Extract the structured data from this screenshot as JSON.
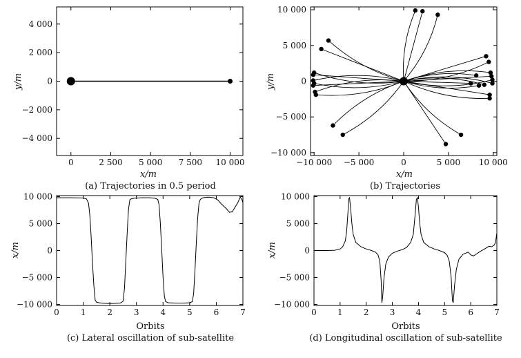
{
  "chart_data": [
    {
      "id": "a",
      "type": "scatter",
      "caption": "(a) Trajectories in 0.5 period",
      "xlabel": "x/m",
      "ylabel": "y/m",
      "xlim": [
        -900,
        10800
      ],
      "ylim": [
        -5200,
        5200
      ],
      "xticks": [
        {
          "v": 0,
          "label": "0"
        },
        {
          "v": 2500,
          "label": "2 500"
        },
        {
          "v": 5000,
          "label": "5 000"
        },
        {
          "v": 7500,
          "label": "7 500"
        },
        {
          "v": 10000,
          "label": "10 000"
        }
      ],
      "yticks": [
        {
          "v": 4000,
          "label": "4 000"
        },
        {
          "v": 2000,
          "label": "2 000"
        },
        {
          "v": 0,
          "label": "0"
        },
        {
          "v": -2000,
          "label": "−2 000"
        },
        {
          "v": -4000,
          "label": "−4 000"
        }
      ],
      "lines": [
        [
          [
            0,
            0
          ],
          [
            10000,
            0
          ]
        ]
      ],
      "markers": [
        {
          "x": 0,
          "y": 0,
          "size": "large"
        },
        {
          "x": 10000,
          "y": 0,
          "size": "small"
        }
      ]
    },
    {
      "id": "b",
      "type": "scatter",
      "caption": "(b) Trajectories",
      "xlabel": "x/m",
      "ylabel": "y/m",
      "xlim": [
        -10400,
        10400
      ],
      "ylim": [
        -10400,
        10400
      ],
      "xticks": [
        {
          "v": -10000,
          "label": "−10 000"
        },
        {
          "v": -5000,
          "label": "−5 000"
        },
        {
          "v": 0,
          "label": "0"
        },
        {
          "v": 5000,
          "label": "5 000"
        },
        {
          "v": 10000,
          "label": "10 000"
        }
      ],
      "yticks": [
        {
          "v": 10000,
          "label": "10 000"
        },
        {
          "v": 5000,
          "label": "5 000"
        },
        {
          "v": 0,
          "label": "0"
        },
        {
          "v": -5000,
          "label": "−5 000"
        },
        {
          "v": -10000,
          "label": "−10 000"
        }
      ],
      "center": {
        "x": 0,
        "y": 0
      },
      "endpoints": [
        [
          1300,
          9900
        ],
        [
          2100,
          9800
        ],
        [
          3800,
          9300
        ],
        [
          -8400,
          5700
        ],
        [
          -9200,
          4500
        ],
        [
          -7900,
          -6200
        ],
        [
          -6800,
          -7500
        ],
        [
          4700,
          -8800
        ],
        [
          6400,
          -7500
        ],
        [
          -10000,
          1200
        ],
        [
          -10100,
          900
        ],
        [
          -10100,
          100
        ],
        [
          -10000,
          -300
        ],
        [
          -10100,
          -600
        ],
        [
          -9900,
          -1500
        ],
        [
          -9800,
          -1900
        ],
        [
          9200,
          3500
        ],
        [
          9500,
          2700
        ],
        [
          9700,
          1200
        ],
        [
          9800,
          700
        ],
        [
          9900,
          200
        ],
        [
          9900,
          -300
        ],
        [
          9600,
          -1900
        ],
        [
          9600,
          -2400
        ],
        [
          8100,
          800
        ],
        [
          7500,
          -300
        ],
        [
          8400,
          -600
        ],
        [
          9000,
          -500
        ]
      ]
    },
    {
      "id": "c",
      "type": "line",
      "caption": "(c) Lateral oscillation of sub-satellite",
      "xlabel": "Orbits",
      "ylabel": "x/m",
      "xlim": [
        0,
        7
      ],
      "ylim": [
        -10200,
        10200
      ],
      "xticks": [
        {
          "v": 0,
          "label": "0"
        },
        {
          "v": 1,
          "label": "1"
        },
        {
          "v": 2,
          "label": "2"
        },
        {
          "v": 3,
          "label": "3"
        },
        {
          "v": 4,
          "label": "4"
        },
        {
          "v": 5,
          "label": "5"
        },
        {
          "v": 6,
          "label": "6"
        },
        {
          "v": 7,
          "label": "7"
        }
      ],
      "yticks": [
        {
          "v": 10000,
          "label": "10 000"
        },
        {
          "v": 5000,
          "label": "5 000"
        },
        {
          "v": 0,
          "label": "0"
        },
        {
          "v": -5000,
          "label": "−5 000"
        },
        {
          "v": -10000,
          "label": "−10 000"
        }
      ],
      "x": [
        0,
        0.5,
        1.0,
        1.12,
        1.2,
        1.25,
        1.3,
        1.35,
        1.4,
        1.45,
        1.5,
        1.6,
        1.8,
        2.0,
        2.2,
        2.4,
        2.5,
        2.55,
        2.6,
        2.65,
        2.7,
        2.75,
        2.8,
        2.9,
        3.2,
        3.5,
        3.7,
        3.8,
        3.85,
        3.9,
        3.95,
        4.0,
        4.05,
        4.1,
        4.2,
        4.5,
        4.8,
        5.0,
        5.1,
        5.15,
        5.2,
        5.25,
        5.3,
        5.35,
        5.4,
        5.5,
        5.7,
        5.9,
        6.05,
        6.2,
        6.35,
        6.5,
        6.6,
        6.7,
        6.8,
        6.9,
        6.97,
        7.0
      ],
      "y": [
        9800,
        9800,
        9750,
        9600,
        8800,
        6500,
        2500,
        -2500,
        -6500,
        -9200,
        -9600,
        -9700,
        -9800,
        -9850,
        -9800,
        -9750,
        -9400,
        -7000,
        -2000,
        3000,
        7500,
        9400,
        9600,
        9700,
        9800,
        9800,
        9700,
        9500,
        8500,
        5000,
        0,
        -5000,
        -8500,
        -9500,
        -9700,
        -9750,
        -9750,
        -9700,
        -9500,
        -8000,
        -3500,
        1500,
        6000,
        8800,
        9500,
        9800,
        9900,
        9800,
        9400,
        8600,
        7900,
        7100,
        7200,
        8000,
        8800,
        9900,
        9400,
        8900
      ]
    },
    {
      "id": "d",
      "type": "line",
      "caption": "(d) Longitudinal oscillation of sub-satellite",
      "xlabel": "Orbits",
      "ylabel": "x/m",
      "xlim": [
        0,
        7
      ],
      "ylim": [
        -10200,
        10200
      ],
      "xticks": [
        {
          "v": 0,
          "label": "0"
        },
        {
          "v": 1,
          "label": "1"
        },
        {
          "v": 2,
          "label": "2"
        },
        {
          "v": 3,
          "label": "3"
        },
        {
          "v": 4,
          "label": "4"
        },
        {
          "v": 5,
          "label": "5"
        },
        {
          "v": 6,
          "label": "6"
        },
        {
          "v": 7,
          "label": "7"
        }
      ],
      "yticks": [
        {
          "v": 10000,
          "label": "10 000"
        },
        {
          "v": 5000,
          "label": "5 000"
        },
        {
          "v": 0,
          "label": "0"
        },
        {
          "v": -5000,
          "label": "−5 000"
        },
        {
          "v": -10000,
          "label": "−10 000"
        }
      ],
      "x": [
        0,
        0.5,
        0.8,
        1.0,
        1.1,
        1.2,
        1.25,
        1.3,
        1.33,
        1.36,
        1.4,
        1.45,
        1.5,
        1.6,
        1.8,
        2.0,
        2.2,
        2.35,
        2.45,
        2.52,
        2.57,
        2.6,
        2.63,
        2.68,
        2.75,
        2.85,
        3.0,
        3.2,
        3.4,
        3.55,
        3.7,
        3.8,
        3.86,
        3.92,
        3.96,
        4.0,
        4.05,
        4.1,
        4.2,
        4.4,
        4.6,
        4.8,
        5.0,
        5.1,
        5.18,
        5.25,
        5.3,
        5.33,
        5.38,
        5.45,
        5.55,
        5.7,
        5.9,
        6.0,
        6.1,
        6.2,
        6.35,
        6.5,
        6.6,
        6.7,
        6.8,
        6.9,
        6.95,
        7.0
      ],
      "y": [
        0,
        0,
        50,
        300,
        700,
        1800,
        3500,
        7000,
        9600,
        9800,
        8000,
        5000,
        3000,
        1500,
        700,
        300,
        0,
        -300,
        -800,
        -2000,
        -5500,
        -9700,
        -8500,
        -5000,
        -2500,
        -1200,
        -500,
        -100,
        200,
        600,
        1500,
        3000,
        6000,
        9500,
        9800,
        8000,
        5000,
        3000,
        1500,
        700,
        300,
        0,
        -400,
        -900,
        -2000,
        -5000,
        -9300,
        -9700,
        -6500,
        -3500,
        -1600,
        -700,
        -300,
        -800,
        -1000,
        -700,
        -200,
        200,
        500,
        800,
        700,
        1000,
        1500,
        3300
      ]
    }
  ]
}
